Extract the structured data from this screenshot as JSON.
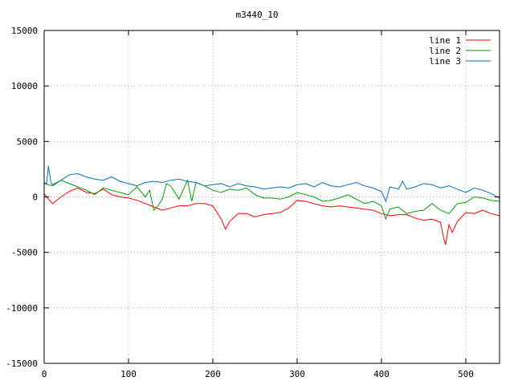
{
  "chart_data": {
    "type": "line",
    "title": "m3440_10",
    "xlabel": "",
    "ylabel": "",
    "xlim": [
      0,
      540
    ],
    "ylim": [
      -15000,
      15000
    ],
    "grid": true,
    "legend_position": "top-right",
    "x_ticks": [
      "0",
      "100",
      "200",
      "300",
      "400",
      "500"
    ],
    "y_ticks": [
      "-15000",
      "-10000",
      "-5000",
      "0",
      "5000",
      "10000",
      "15000"
    ],
    "series": [
      {
        "name": "line 1",
        "color": "#ff0000",
        "x": [
          0,
          5,
          10,
          20,
          30,
          40,
          50,
          60,
          70,
          80,
          90,
          100,
          110,
          120,
          130,
          140,
          150,
          160,
          170,
          180,
          190,
          200,
          210,
          215,
          220,
          230,
          240,
          250,
          260,
          270,
          280,
          290,
          300,
          310,
          320,
          330,
          340,
          350,
          360,
          370,
          380,
          390,
          400,
          410,
          420,
          430,
          440,
          450,
          460,
          470,
          474,
          476,
          480,
          484,
          490,
          495,
          500,
          510,
          520,
          530,
          540
        ],
        "values": [
          300,
          -200,
          -600,
          0,
          500,
          800,
          400,
          300,
          700,
          200,
          0,
          -100,
          -300,
          -600,
          -900,
          -1200,
          -1000,
          -800,
          -800,
          -600,
          -600,
          -800,
          -2000,
          -2900,
          -2200,
          -1500,
          -1500,
          -1800,
          -1600,
          -1500,
          -1400,
          -1000,
          -300,
          -400,
          -600,
          -800,
          -900,
          -800,
          -900,
          -1000,
          -1100,
          -1200,
          -1500,
          -1700,
          -1600,
          -1600,
          -1900,
          -2100,
          -2000,
          -2300,
          -3800,
          -4300,
          -2500,
          -3200,
          -2200,
          -1800,
          -1400,
          -1500,
          -1200,
          -1500,
          -1700
        ]
      },
      {
        "name": "line 2",
        "color": "#00a000",
        "x": [
          0,
          10,
          20,
          30,
          40,
          50,
          60,
          70,
          80,
          90,
          100,
          110,
          120,
          125,
          130,
          135,
          140,
          145,
          150,
          160,
          170,
          175,
          180,
          190,
          200,
          210,
          220,
          230,
          240,
          250,
          260,
          270,
          280,
          290,
          300,
          310,
          320,
          330,
          340,
          350,
          360,
          370,
          380,
          390,
          400,
          405,
          410,
          420,
          430,
          440,
          450,
          460,
          470,
          480,
          490,
          500,
          510,
          520,
          530,
          540
        ],
        "values": [
          1200,
          1000,
          1500,
          1200,
          900,
          600,
          200,
          800,
          600,
          400,
          200,
          900,
          0,
          600,
          -1200,
          -800,
          -200,
          1200,
          1000,
          -200,
          1500,
          -400,
          1300,
          1000,
          600,
          400,
          700,
          600,
          800,
          200,
          -100,
          -100,
          -200,
          0,
          400,
          200,
          0,
          -400,
          -300,
          -100,
          200,
          -200,
          -600,
          -400,
          -800,
          -2000,
          -1100,
          -900,
          -1500,
          -1300,
          -1200,
          -600,
          -1200,
          -1500,
          -600,
          -500,
          0,
          -100,
          -300,
          -400
        ]
      },
      {
        "name": "line 3",
        "color": "#0070c0",
        "x": [
          0,
          3,
          5,
          8,
          10,
          20,
          30,
          40,
          50,
          60,
          70,
          80,
          90,
          100,
          110,
          120,
          130,
          140,
          150,
          160,
          170,
          180,
          190,
          200,
          210,
          220,
          230,
          240,
          250,
          260,
          270,
          280,
          290,
          300,
          310,
          320,
          330,
          340,
          350,
          360,
          370,
          380,
          390,
          400,
          405,
          410,
          420,
          425,
          430,
          440,
          450,
          460,
          470,
          480,
          490,
          500,
          510,
          520,
          530,
          540
        ],
        "values": [
          1300,
          1200,
          2800,
          1300,
          1100,
          1500,
          2000,
          2100,
          1800,
          1600,
          1500,
          1800,
          1400,
          1200,
          1000,
          1300,
          1400,
          1300,
          1500,
          1600,
          1400,
          1300,
          1000,
          1100,
          1200,
          900,
          1200,
          1000,
          900,
          700,
          800,
          900,
          800,
          1100,
          1200,
          900,
          1300,
          1000,
          900,
          1100,
          1300,
          1000,
          800,
          500,
          -400,
          900,
          700,
          1400,
          700,
          900,
          1200,
          1100,
          800,
          1000,
          700,
          400,
          800,
          600,
          300,
          -100
        ]
      }
    ]
  }
}
